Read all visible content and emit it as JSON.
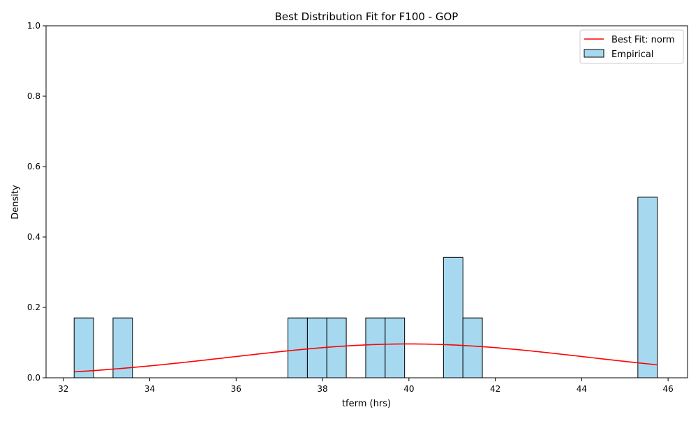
{
  "chart_data": {
    "type": "histogram",
    "title": "Best Distribution Fit for F100 - GOP",
    "xlabel": "tferm (hrs)",
    "ylabel": "Density",
    "xlim": [
      31.6,
      46.45
    ],
    "ylim": [
      0,
      1.0
    ],
    "xticks": [
      32,
      34,
      36,
      38,
      40,
      42,
      44,
      46
    ],
    "yticks": [
      0.0,
      0.2,
      0.4,
      0.6,
      0.8,
      1.0
    ],
    "grid": false,
    "legend": {
      "placement": "top-right",
      "entries": [
        {
          "label": "Best Fit: norm",
          "kind": "line",
          "color": "#ff0000"
        },
        {
          "label": "Empirical",
          "kind": "patch",
          "color": "#a6d9f0"
        }
      ]
    },
    "histogram": {
      "name": "Empirical",
      "color": "#a6d9f0",
      "edgecolor": "#000000",
      "bins": [
        {
          "x0": 32.25,
          "x1": 32.7,
          "density": 0.17
        },
        {
          "x0": 33.15,
          "x1": 33.6,
          "density": 0.17
        },
        {
          "x0": 37.2,
          "x1": 37.65,
          "density": 0.17
        },
        {
          "x0": 37.65,
          "x1": 38.1,
          "density": 0.17
        },
        {
          "x0": 38.1,
          "x1": 38.55,
          "density": 0.17
        },
        {
          "x0": 39.0,
          "x1": 39.45,
          "density": 0.17
        },
        {
          "x0": 39.45,
          "x1": 39.9,
          "density": 0.17
        },
        {
          "x0": 40.8,
          "x1": 41.25,
          "density": 0.342
        },
        {
          "x0": 41.25,
          "x1": 41.7,
          "density": 0.17
        },
        {
          "x0": 45.3,
          "x1": 45.75,
          "density": 0.513
        }
      ]
    },
    "fit": {
      "name": "Best Fit: norm",
      "distribution": "norm",
      "color": "#ff0000",
      "mu": 40.0,
      "sigma": 4.15,
      "x_range": [
        32.25,
        45.75
      ]
    }
  }
}
